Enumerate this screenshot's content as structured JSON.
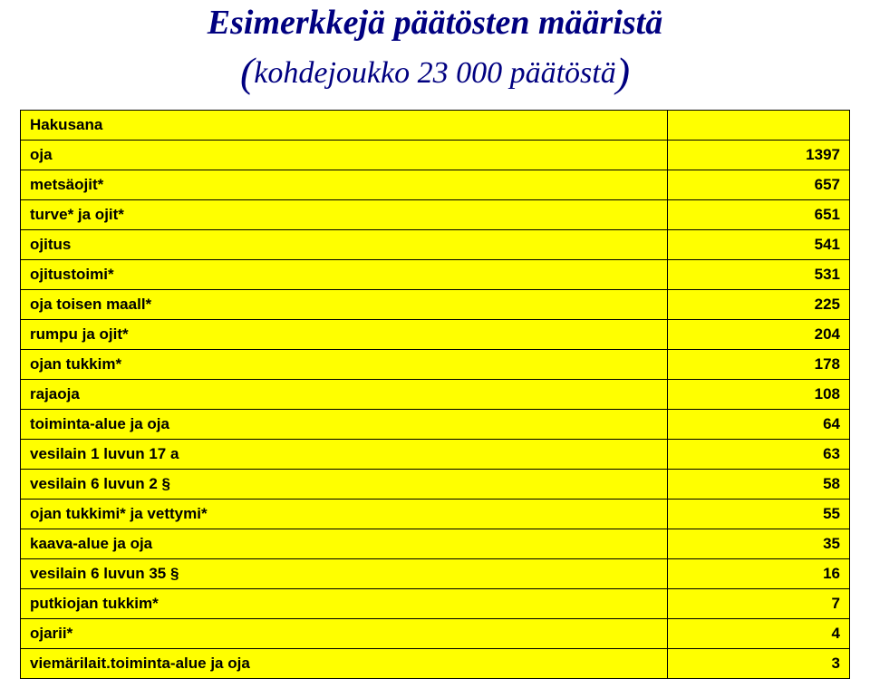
{
  "title": "Esimerkkejä päätösten määristä",
  "subtitle_inner": "kohdejoukko 23 000 päätöstä",
  "paren_open": "(",
  "paren_close": ")",
  "table": {
    "header_label": "Hakusana",
    "rows": [
      {
        "label": "oja",
        "value": "1397"
      },
      {
        "label": "metsäojit*",
        "value": "657"
      },
      {
        "label": "turve* ja ojit*",
        "value": "651"
      },
      {
        "label": "ojitus",
        "value": "541"
      },
      {
        "label": "ojitustoimi*",
        "value": "531"
      },
      {
        "label": "oja toisen maall*",
        "value": "225"
      },
      {
        "label": "rumpu ja ojit*",
        "value": "204"
      },
      {
        "label": "ojan tukkim*",
        "value": "178"
      },
      {
        "label": "rajaoja",
        "value": "108"
      },
      {
        "label": "toiminta-alue ja oja",
        "value": "64"
      },
      {
        "label": "vesilain 1 luvun 17 a",
        "value": "63"
      },
      {
        "label": "vesilain 6 luvun 2 §",
        "value": "58"
      },
      {
        "label": "ojan tukkimi* ja vettymi*",
        "value": "55"
      },
      {
        "label": "kaava-alue ja oja",
        "value": "35"
      },
      {
        "label": "vesilain 6 luvun 35 §",
        "value": "16"
      },
      {
        "label": "putkiojan tukkim*",
        "value": "7"
      },
      {
        "label": "ojarii*",
        "value": "4"
      },
      {
        "label": "viemärilait.toiminta-alue ja oja",
        "value": "3"
      }
    ]
  },
  "style": {
    "title_color": "#000080",
    "subtitle_color": "#000080",
    "cell_bg": "#ffff00",
    "cell_border": "#000000",
    "title_fontsize": 38,
    "subtitle_fontsize": 34,
    "paren_fontsize": 46,
    "cell_fontsize": 17
  }
}
